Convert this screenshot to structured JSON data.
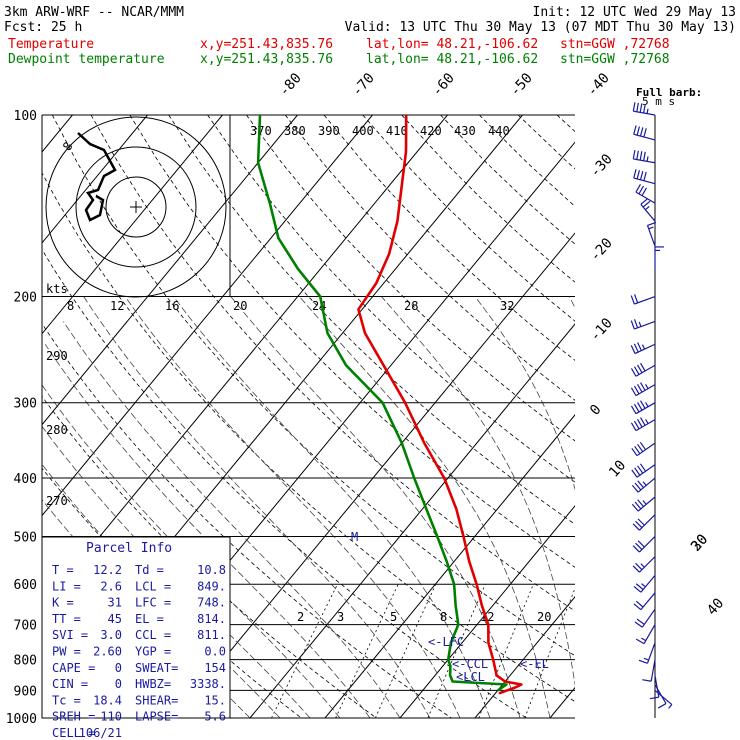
{
  "header": {
    "model": "3km ARW-WRF -- NCAR/MMM",
    "init": "Init: 12 UTC Wed 29 May 13",
    "fcst": "Fcst:    25 h",
    "valid": "Valid: 13 UTC Thu 30 May 13 (07 MDT Thu 30 May 13)"
  },
  "legend": {
    "temperature": {
      "label": "Temperature",
      "color": "#e00000",
      "xy": "x,y=251.43,835.76",
      "latlon": "lat,lon= 48.21,-106.62",
      "stn": "stn=GGW ,72768"
    },
    "dewpoint": {
      "label": "Dewpoint temperature",
      "color": "#008000",
      "xy": "x,y=251.43,835.76",
      "latlon": "lat,lon= 48.21,-106.62",
      "stn": "stn=GGW ,72768"
    }
  },
  "barb_label": {
    "line1": "Full barb:",
    "line2": "5 m s"
  },
  "hodograph": {
    "kts_label": "kts",
    "speed_ticks": [
      "8",
      "12",
      "16",
      "20",
      "24",
      "28",
      "32"
    ],
    "ring_labels": [
      "8"
    ]
  },
  "theta_e_labels": [
    "370",
    "380",
    "390",
    "400",
    "410",
    "420",
    "430",
    "440"
  ],
  "theta_labels": [
    "290",
    "280",
    "270"
  ],
  "mixing_ratio_labels": [
    "2",
    "3",
    "5",
    "8",
    "12",
    "20"
  ],
  "markers": {
    "lfc": "<-LFC",
    "ccl": "<-CCL",
    "el": "<-EL",
    "lcl": "<LCL",
    "m": "M"
  },
  "parcel_info": {
    "title": "Parcel Info",
    "rows": [
      [
        "T   =",
        "12.2",
        "Td  =",
        "10.8"
      ],
      [
        "LI  =",
        "2.6",
        "LCL =",
        "849."
      ],
      [
        "K   =",
        "31",
        "LFC =",
        "748."
      ],
      [
        "TT  =",
        "45",
        "EL  =",
        "814."
      ],
      [
        "SVI =",
        "3.0",
        "CCL =",
        "811."
      ],
      [
        "PW  =",
        "2.60",
        "YGP =",
        "0.0"
      ],
      [
        "CAPE =",
        "0",
        "SWEAT=",
        "154"
      ],
      [
        "CIN  =",
        "0",
        "HWBZ=",
        "3338."
      ],
      [
        "Tc  =",
        "18.4",
        "SHEAR=",
        "15."
      ],
      [
        "SREH =",
        "110",
        "LAPSE=",
        "5.6"
      ],
      [
        "CELL =",
        "106/21",
        "",
        ""
      ]
    ]
  },
  "chart_data": {
    "type": "line",
    "title": "",
    "xlabel": "",
    "ylabel": "",
    "y_axis": "pressure (hPa), log scale",
    "pressure_ticks": [
      100,
      200,
      300,
      400,
      500,
      600,
      700,
      800,
      900,
      1000
    ],
    "isotherm_labels": [
      -80,
      -70,
      -60,
      -50,
      -40,
      -30,
      -20,
      -10,
      0,
      10,
      20,
      30,
      40
    ],
    "ylim": [
      1000,
      100
    ],
    "series": [
      {
        "name": "Temperature",
        "color": "#e00000",
        "points": [
          [
            910,
            10.5
          ],
          [
            890,
            12.0
          ],
          [
            880,
            12.5
          ],
          [
            870,
            10.0
          ],
          [
            850,
            8.2
          ],
          [
            800,
            6.0
          ],
          [
            750,
            3.5
          ],
          [
            700,
            1.5
          ],
          [
            650,
            -1.5
          ],
          [
            600,
            -4.5
          ],
          [
            550,
            -8.0
          ],
          [
            500,
            -11.5
          ],
          [
            450,
            -15.5
          ],
          [
            400,
            -20.5
          ],
          [
            350,
            -27.0
          ],
          [
            300,
            -34.0
          ],
          [
            260,
            -41.0
          ],
          [
            230,
            -47.0
          ],
          [
            210,
            -50.5
          ],
          [
            190,
            -51.0
          ],
          [
            170,
            -52.5
          ],
          [
            150,
            -55.0
          ],
          [
            130,
            -58.5
          ],
          [
            115,
            -61.5
          ],
          [
            100,
            -65.5
          ]
        ]
      },
      {
        "name": "Dewpoint temperature",
        "color": "#008000",
        "points": [
          [
            900,
            10.0
          ],
          [
            880,
            10.5
          ],
          [
            870,
            3.0
          ],
          [
            850,
            2.0
          ],
          [
            820,
            1.0
          ],
          [
            800,
            0.0
          ],
          [
            750,
            -1.5
          ],
          [
            700,
            -2.5
          ],
          [
            650,
            -5.0
          ],
          [
            600,
            -7.5
          ],
          [
            550,
            -11.0
          ],
          [
            500,
            -15.0
          ],
          [
            450,
            -19.5
          ],
          [
            400,
            -24.5
          ],
          [
            350,
            -30.0
          ],
          [
            300,
            -37.0
          ],
          [
            260,
            -46.0
          ],
          [
            230,
            -52.0
          ],
          [
            200,
            -57.0
          ],
          [
            180,
            -63.0
          ],
          [
            160,
            -69.0
          ],
          [
            140,
            -74.0
          ],
          [
            120,
            -80.0
          ],
          [
            100,
            -85.0
          ]
        ]
      }
    ],
    "wind_barbs": [
      {
        "p": 100,
        "kts": 45,
        "dir": 280
      },
      {
        "p": 110,
        "kts": 40,
        "dir": 285
      },
      {
        "p": 120,
        "kts": 45,
        "dir": 280
      },
      {
        "p": 130,
        "kts": 40,
        "dir": 285
      },
      {
        "p": 140,
        "kts": 30,
        "dir": 300
      },
      {
        "p": 150,
        "kts": 25,
        "dir": 320
      },
      {
        "p": 165,
        "kts": 15,
        "dir": 340
      },
      {
        "p": 180,
        "kts": 15,
        "dir": 0
      },
      {
        "p": 200,
        "kts": 20,
        "dir": 250
      },
      {
        "p": 220,
        "kts": 25,
        "dir": 250
      },
      {
        "p": 240,
        "kts": 35,
        "dir": 245
      },
      {
        "p": 260,
        "kts": 40,
        "dir": 240
      },
      {
        "p": 280,
        "kts": 45,
        "dir": 240
      },
      {
        "p": 300,
        "kts": 45,
        "dir": 240
      },
      {
        "p": 320,
        "kts": 45,
        "dir": 240
      },
      {
        "p": 350,
        "kts": 40,
        "dir": 235
      },
      {
        "p": 380,
        "kts": 40,
        "dir": 235
      },
      {
        "p": 400,
        "kts": 35,
        "dir": 230
      },
      {
        "p": 430,
        "kts": 35,
        "dir": 230
      },
      {
        "p": 460,
        "kts": 30,
        "dir": 225
      },
      {
        "p": 500,
        "kts": 30,
        "dir": 225
      },
      {
        "p": 540,
        "kts": 25,
        "dir": 225
      },
      {
        "p": 580,
        "kts": 25,
        "dir": 220
      },
      {
        "p": 620,
        "kts": 20,
        "dir": 220
      },
      {
        "p": 660,
        "kts": 20,
        "dir": 215
      },
      {
        "p": 700,
        "kts": 15,
        "dir": 210
      },
      {
        "p": 750,
        "kts": 15,
        "dir": 200
      },
      {
        "p": 800,
        "kts": 10,
        "dir": 190
      },
      {
        "p": 850,
        "kts": 10,
        "dir": 170
      },
      {
        "p": 880,
        "kts": 10,
        "dir": 150
      },
      {
        "p": 900,
        "kts": 5,
        "dir": 130
      }
    ],
    "grid": true
  }
}
